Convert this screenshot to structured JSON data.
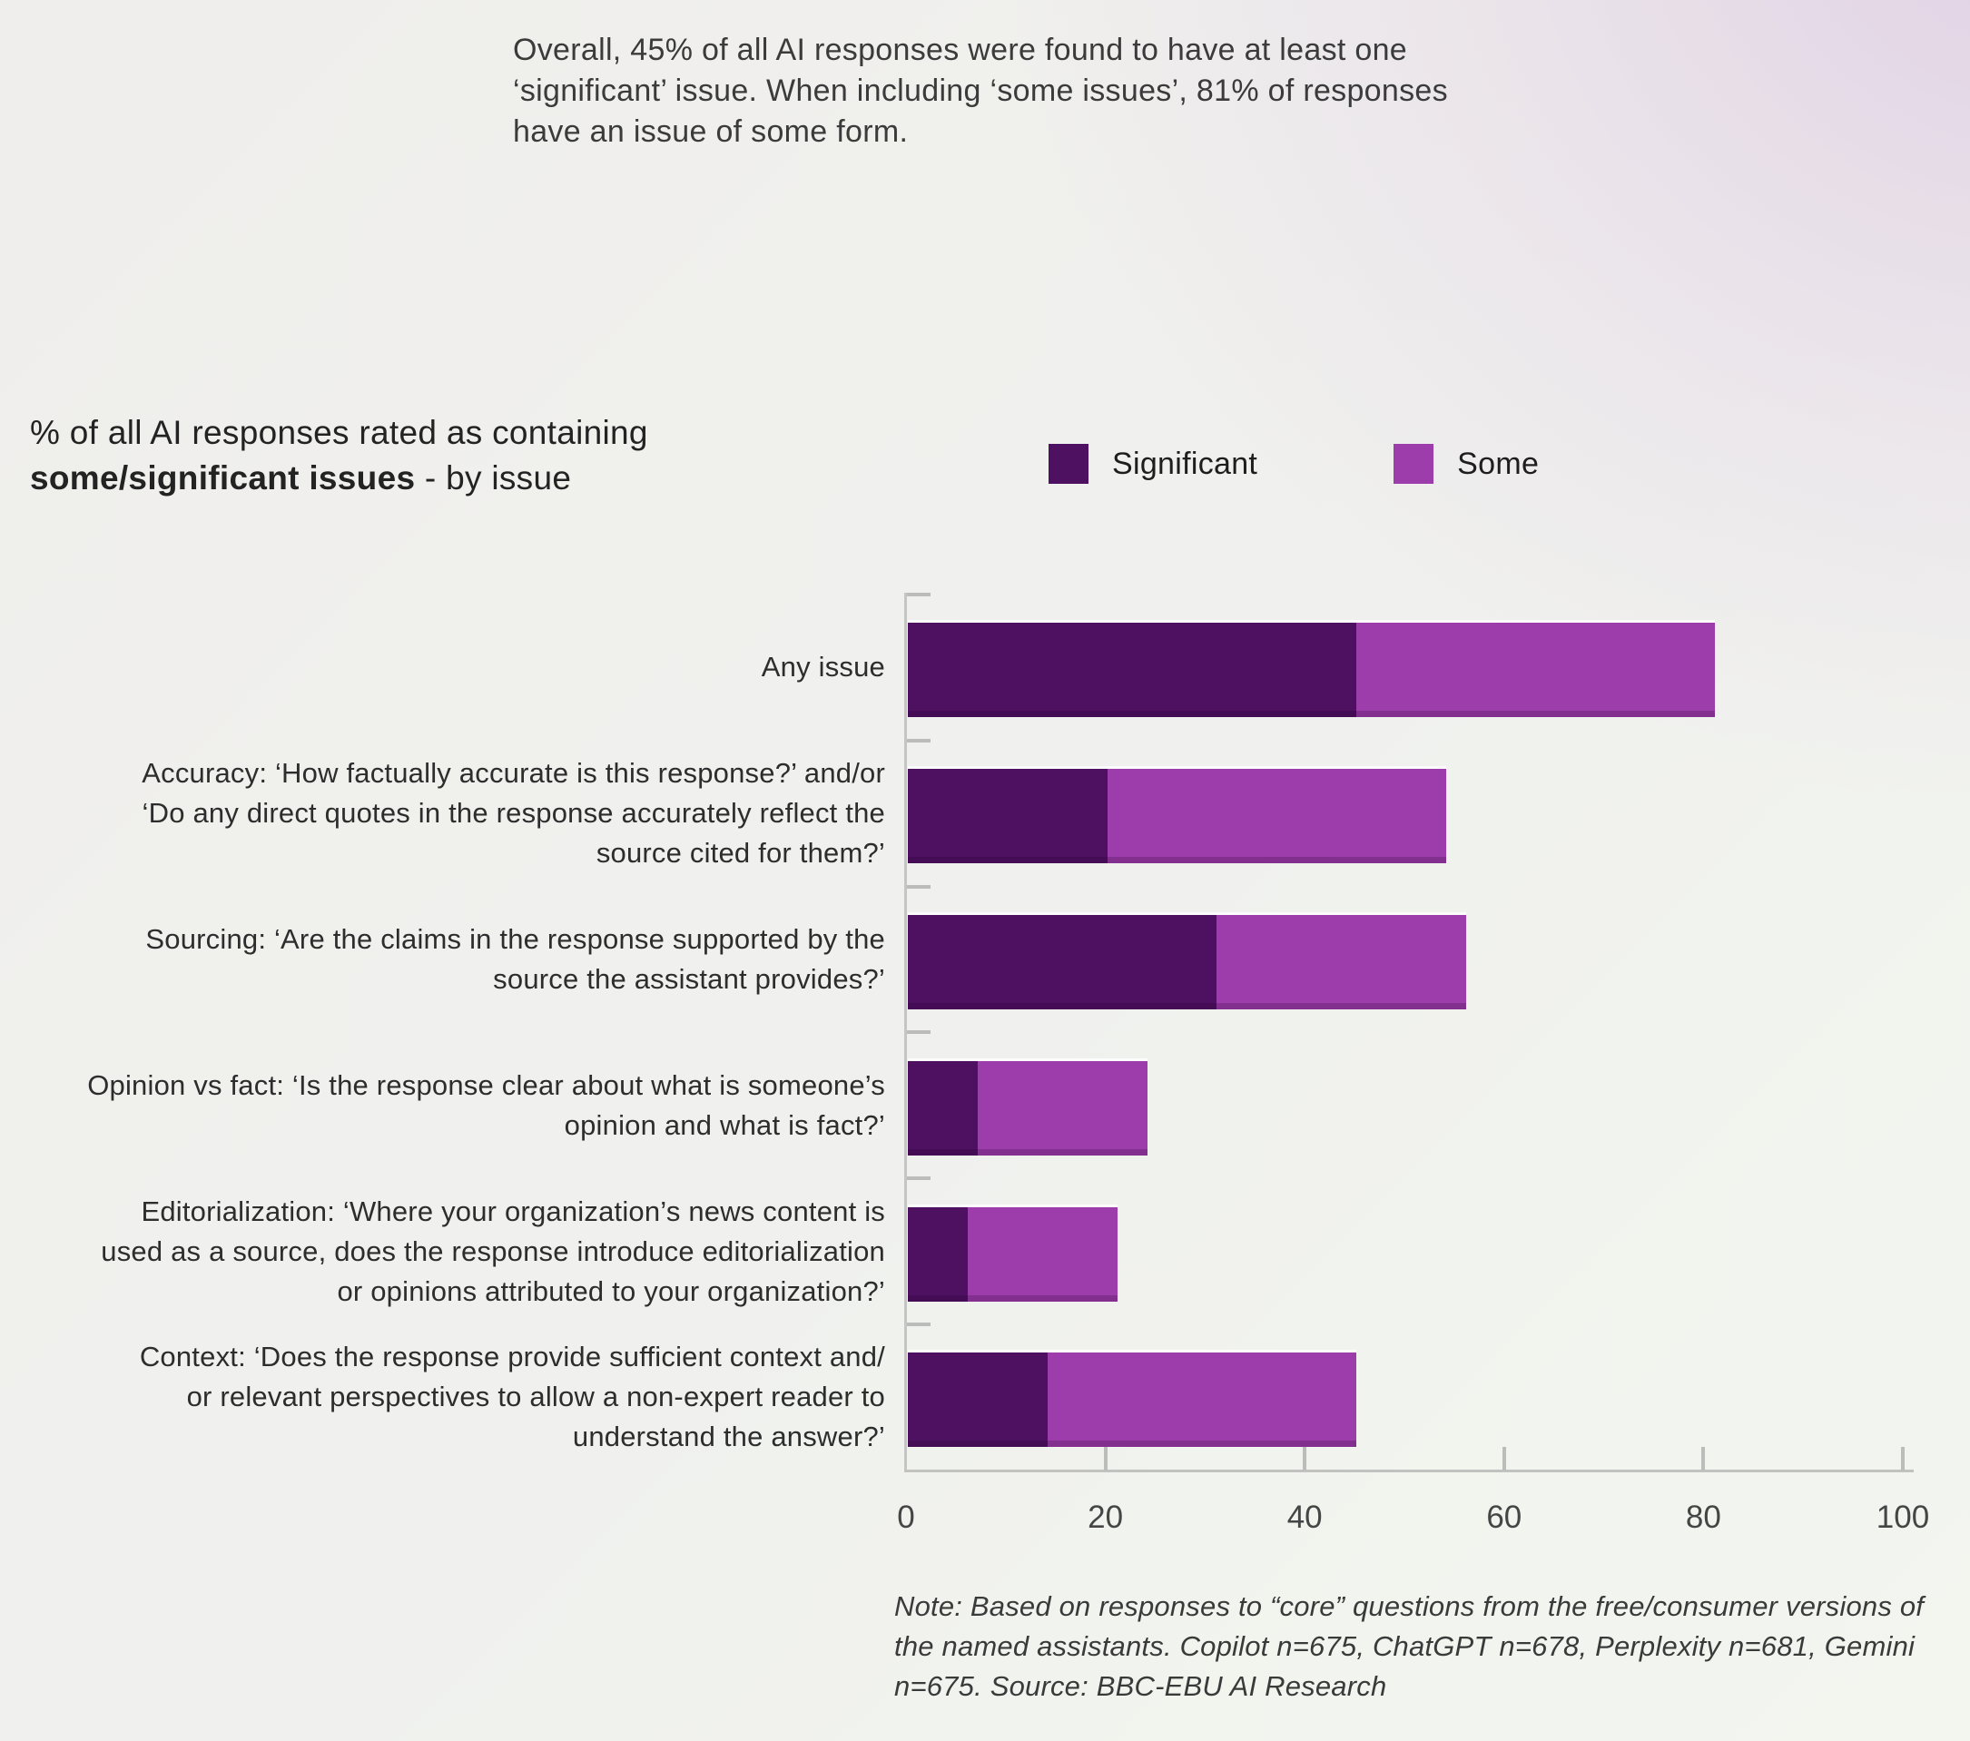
{
  "intro": {
    "lines": [
      "Overall, 45% of all AI responses were found to have at least one",
      "‘significant’ issue. When including ‘some issues’, 81% of responses",
      "have an issue of some form."
    ]
  },
  "title": {
    "line1": "% of all AI responses rated as containing",
    "bold": "some/significant issues",
    "rest": " - by issue"
  },
  "legend": {
    "items": [
      {
        "label": "Significant",
        "color": "#4e1061"
      },
      {
        "label": "Some",
        "color": "#9c3dab"
      }
    ]
  },
  "chart_data": {
    "type": "bar",
    "orientation": "horizontal",
    "stacked": true,
    "title": "% of all AI responses rated as containing some/significant issues - by issue",
    "xlabel": "",
    "ylabel": "",
    "xlim": [
      0,
      100
    ],
    "x_ticks": [
      0,
      20,
      40,
      60,
      80,
      100
    ],
    "grid": false,
    "legend_position": "top-right",
    "categories": [
      [
        "Any issue"
      ],
      [
        "Accuracy: ‘How factually accurate is this response?’ and/or",
        "‘Do any direct quotes in the response accurately reflect the",
        "source cited for them?’"
      ],
      [
        "Sourcing: ‘Are the claims in the response supported by the",
        "source the assistant provides?’"
      ],
      [
        "Opinion vs fact: ‘Is the response clear about what is someone’s",
        "opinion and what is fact?’"
      ],
      [
        "Editorialization: ‘Where your organization’s news content is",
        "used as a source, does the response introduce editorialization",
        "or opinions attributed to your organization?’"
      ],
      [
        "Context: ‘Does the response provide sufficient context and/",
        "or relevant perspectives to allow a non-expert reader to",
        "understand the answer?’"
      ]
    ],
    "series": [
      {
        "name": "Significant",
        "color": "#4e1061",
        "values": [
          45,
          20,
          31,
          7,
          6,
          14
        ]
      },
      {
        "name": "Some",
        "color": "#9c3dab",
        "values": [
          36,
          34,
          25,
          17,
          15,
          31
        ]
      }
    ],
    "totals": [
      81,
      54,
      56,
      24,
      21,
      45
    ]
  },
  "note": {
    "lines": [
      "Note: Based on responses to “core” questions from the free/consumer",
      "versions of the named assistants. Copilot n=675, ChatGPT n=678, Perplexity",
      "n=681, Gemini n=675. Source: BBC-EBU AI Research"
    ]
  }
}
